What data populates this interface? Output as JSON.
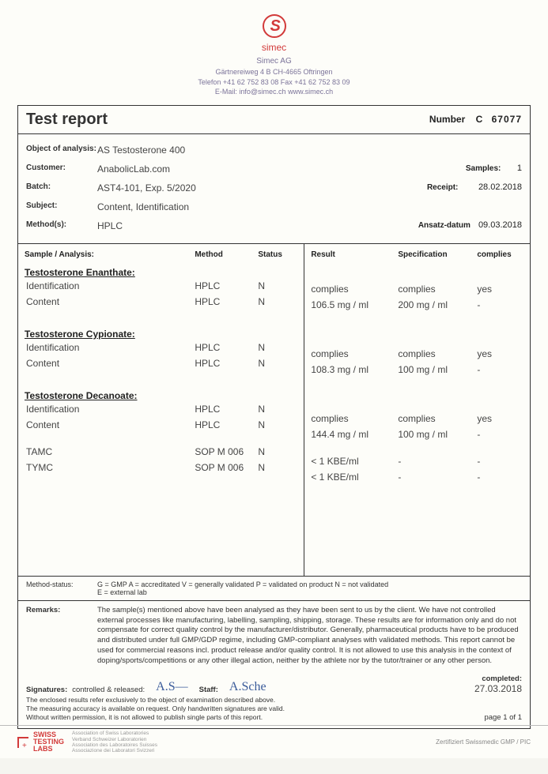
{
  "logo": {
    "brand": "simec"
  },
  "company": {
    "name": "Simec AG",
    "address": "Gärtnereiweg 4 B  CH-4665 Oftringen",
    "phones": "Telefon +41 62 752 83 08  Fax +41 62 752 83 09",
    "email_web": "E-Mail: info@simec.ch  www.simec.ch"
  },
  "report": {
    "title": "Test report",
    "number_label": "Number",
    "number_prefix": "C",
    "number": "67077"
  },
  "meta": {
    "object_label": "Object of analysis:",
    "object_value": "AS Testosterone 400",
    "customer_label": "Customer:",
    "customer_value": "AnabolicLab.com",
    "samples_label": "Samples:",
    "samples_value": "1",
    "batch_label": "Batch:",
    "batch_value": "AST4-101, Exp. 5/2020",
    "receipt_label": "Receipt:",
    "receipt_value": "28.02.2018",
    "subject_label": "Subject:",
    "subject_value": "Content, Identification",
    "methods_label": "Method(s):",
    "methods_value": "HPLC",
    "ansatz_label": "Ansatz-datum",
    "ansatz_value": "09.03.2018"
  },
  "headers": {
    "sample_analysis": "Sample / Analysis:",
    "method": "Method",
    "status": "Status",
    "result": "Result",
    "specification": "Specification",
    "complies": "complies"
  },
  "groups": [
    {
      "title": "Testosterone Enanthate:",
      "rows": [
        {
          "name": "Identification",
          "method": "HPLC",
          "status": "N",
          "result": "complies",
          "spec": "complies",
          "complies": "yes"
        },
        {
          "name": "Content",
          "method": "HPLC",
          "status": "N",
          "result": "106.5 mg / ml",
          "spec": "200 mg / ml",
          "complies": "-"
        }
      ]
    },
    {
      "title": "Testosterone Cypionate:",
      "rows": [
        {
          "name": "Identification",
          "method": "HPLC",
          "status": "N",
          "result": "complies",
          "spec": "complies",
          "complies": "yes"
        },
        {
          "name": "Content",
          "method": "HPLC",
          "status": "N",
          "result": "108.3 mg / ml",
          "spec": "100 mg / ml",
          "complies": "-"
        }
      ]
    },
    {
      "title": "Testosterone Decanoate:",
      "rows": [
        {
          "name": "Identification",
          "method": "HPLC",
          "status": "N",
          "result": "complies",
          "spec": "complies",
          "complies": "yes"
        },
        {
          "name": "Content",
          "method": "HPLC",
          "status": "N",
          "result": "144.4 mg / ml",
          "spec": "100 mg / ml",
          "complies": "-"
        }
      ]
    }
  ],
  "loose_rows": [
    {
      "name": "TAMC",
      "method": "SOP M 006",
      "status": "N",
      "result": "< 1 KBE/ml",
      "spec": "-",
      "complies": "-"
    },
    {
      "name": "TYMC",
      "method": "SOP M 006",
      "status": "N",
      "result": "< 1 KBE/ml",
      "spec": "-",
      "complies": "-"
    }
  ],
  "method_status": {
    "label": "Method-status:",
    "line1": "G = GMP   A = accreditated   V = generally validated   P = validated on product   N = not validated",
    "line2": "E = external lab"
  },
  "remarks": {
    "label": "Remarks:",
    "text": "The sample(s) mentioned above have been analysed as they have been sent to us by the client. We have not controlled external processes like manufacturing, labelling, sampling, shipping, storage. These results are for information only and do not compensate for correct quality control by the manufacturer/distributor. Generally, pharmaceutical products have to be produced and distributed under full GMP/GDP regime, including GMP-compliant analyses with validated methods. This report cannot be used for commercial reasons incl. product release and/or quality control. It is not allowed to use this analysis in the context of doping/sports/competitions or any other illegal action, neither by the athlete nor by the tutor/trainer or any other person."
  },
  "signatures": {
    "sig_label": "Signatures:",
    "controlled": "controlled & released:",
    "staff": "Staff:",
    "completed_label": "completed:",
    "completed_date": "27.03.2018",
    "page": "page 1 of 1",
    "fine1": "The enclosed results refer exclusively to the object of examination described above.",
    "fine2": "The measuring accuracy is available on request. Only handwritten signatures are valid.",
    "fine3": "Without written permission, it is not allowed to publish single parts of this report."
  },
  "footer": {
    "swiss1": "SWISS",
    "swiss2": "TESTING",
    "swiss3": "LABS",
    "assoc1": "Association of Swiss Laboratories",
    "assoc2": "Verband Schweizer Laboratorien",
    "assoc3": "Association des Laboratoires Suisses",
    "assoc4": "Associazione dei Laboratori Svizzeri",
    "cert": "Zertifiziert Swissmedic GMP / PIC"
  }
}
